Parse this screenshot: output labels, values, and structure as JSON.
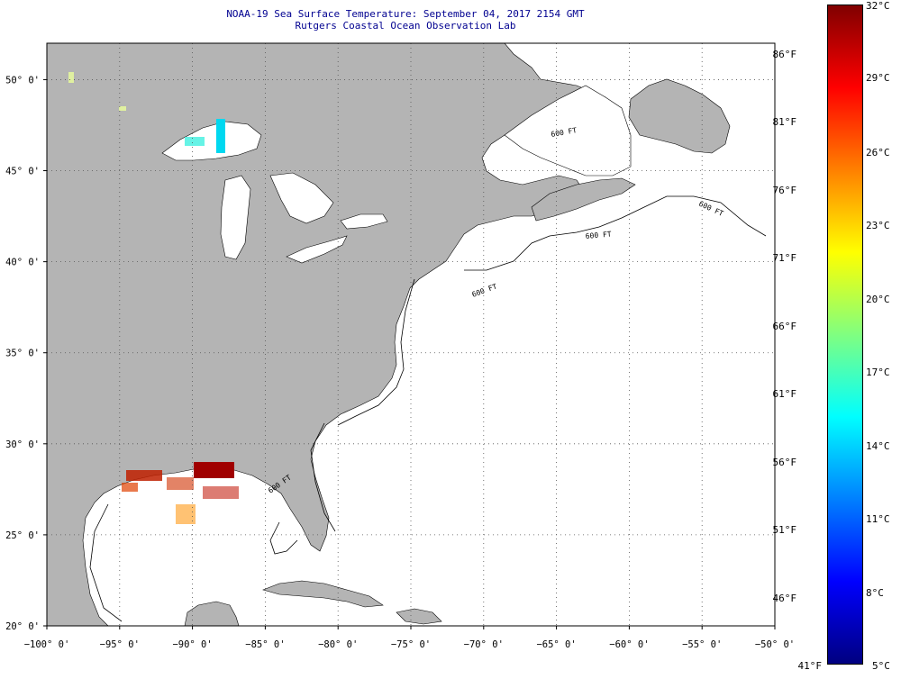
{
  "header": {
    "line1": "NOAA-19 Sea Surface Temperature:  September 04, 2017 2154 GMT",
    "line2": "Rutgers Coastal Ocean Observation Lab"
  },
  "map": {
    "extent": {
      "lon_min": -100,
      "lon_max": -50,
      "lat_min": 20,
      "lat_max": 52
    },
    "land_color": "#b4b4b4",
    "ocean_color": "#ffffff",
    "grid": "dotted",
    "lat_ticks": [
      {
        "value": 20,
        "label": "20° 0'"
      },
      {
        "value": 25,
        "label": "25° 0'"
      },
      {
        "value": 30,
        "label": "30° 0'"
      },
      {
        "value": 35,
        "label": "35° 0'"
      },
      {
        "value": 40,
        "label": "40° 0'"
      },
      {
        "value": 45,
        "label": "45° 0'"
      },
      {
        "value": 50,
        "label": "50° 0'"
      }
    ],
    "lon_ticks": [
      {
        "value": -100,
        "label": "−100° 0'"
      },
      {
        "value": -95,
        "label": "−95° 0'"
      },
      {
        "value": -90,
        "label": "−90° 0'"
      },
      {
        "value": -85,
        "label": "−85° 0'"
      },
      {
        "value": -80,
        "label": "−80° 0'"
      },
      {
        "value": -75,
        "label": "−75° 0'"
      },
      {
        "value": -70,
        "label": "−70° 0'"
      },
      {
        "value": -65,
        "label": "−65° 0'"
      },
      {
        "value": -60,
        "label": "−60° 0'"
      },
      {
        "value": -55,
        "label": "−55° 0'"
      },
      {
        "value": -50,
        "label": "−50° 0'"
      }
    ],
    "isobath_labels": [
      "600 FT",
      "600 FT",
      "600 FT",
      "600 FT",
      "600 FT"
    ]
  },
  "colorbar": {
    "celsius_labels": [
      "32°C",
      "29°C",
      "26°C",
      "23°C",
      "20°C",
      "17°C",
      "14°C",
      "11°C",
      "8°C",
      "5°C"
    ],
    "fahrenheit_labels": [
      "86°F",
      "81°F",
      "76°F",
      "71°F",
      "66°F",
      "61°F",
      "56°F",
      "51°F",
      "46°F",
      "41°F"
    ],
    "colors": [
      "#000080",
      "#0000ff",
      "#0080ff",
      "#00ffff",
      "#80ff80",
      "#ffff00",
      "#ff8000",
      "#ff0000",
      "#800000"
    ]
  }
}
